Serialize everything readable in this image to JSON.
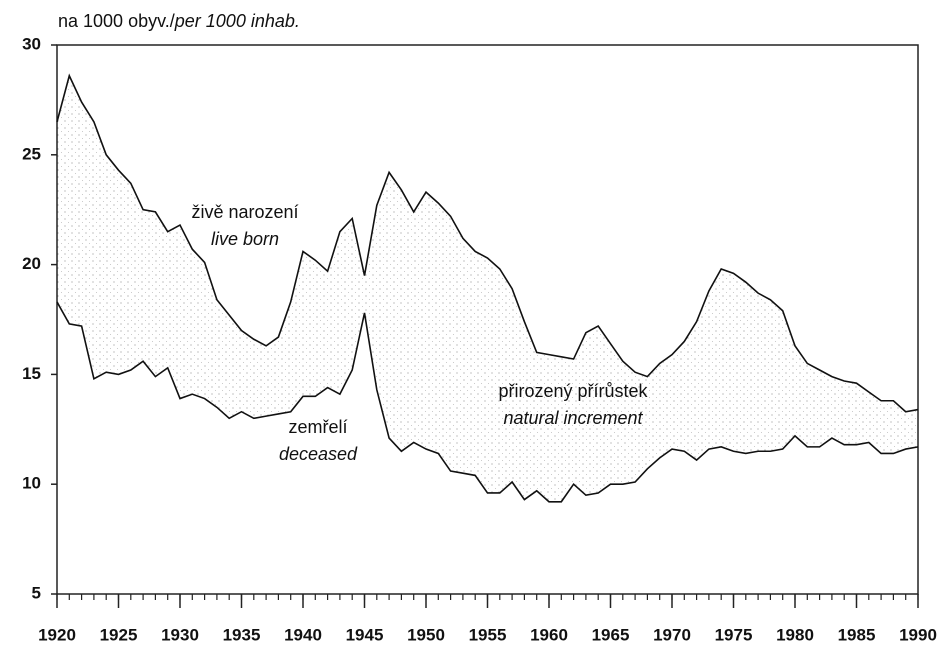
{
  "chart_data": {
    "type": "line",
    "y_label": [
      "na 1000 obyv./",
      "per 1000 inhab."
    ],
    "x": [
      1920,
      1921,
      1922,
      1923,
      1924,
      1925,
      1926,
      1927,
      1928,
      1929,
      1930,
      1931,
      1932,
      1933,
      1934,
      1935,
      1936,
      1937,
      1938,
      1939,
      1940,
      1941,
      1942,
      1943,
      1944,
      1945,
      1946,
      1947,
      1948,
      1949,
      1950,
      1951,
      1952,
      1953,
      1954,
      1955,
      1956,
      1957,
      1958,
      1959,
      1960,
      1961,
      1962,
      1963,
      1964,
      1965,
      1966,
      1967,
      1968,
      1969,
      1970,
      1971,
      1972,
      1973,
      1974,
      1975,
      1976,
      1977,
      1978,
      1979,
      1980,
      1981,
      1982,
      1983,
      1984,
      1985,
      1986,
      1987,
      1988,
      1989,
      1990
    ],
    "series": [
      {
        "name": [
          "živě narození",
          "live born"
        ],
        "color": "#111111",
        "values": [
          26.5,
          28.6,
          27.4,
          26.5,
          25.0,
          24.3,
          23.7,
          22.5,
          22.4,
          21.5,
          21.8,
          20.7,
          20.1,
          18.4,
          17.7,
          17.0,
          16.6,
          16.3,
          16.7,
          18.3,
          20.6,
          20.2,
          19.7,
          21.5,
          22.1,
          19.5,
          22.7,
          24.2,
          23.4,
          22.4,
          23.3,
          22.8,
          22.2,
          21.2,
          20.6,
          20.3,
          19.8,
          18.9,
          17.4,
          16.0,
          15.9,
          15.8,
          15.7,
          16.9,
          17.2,
          16.4,
          15.6,
          15.1,
          14.9,
          15.5,
          15.9,
          16.5,
          17.4,
          18.8,
          19.8,
          19.6,
          19.2,
          18.7,
          18.4,
          17.9,
          16.3,
          15.5,
          15.2,
          14.9,
          14.7,
          14.6,
          14.2,
          13.8,
          13.8,
          13.3,
          13.4
        ]
      },
      {
        "name": [
          "zemřelí",
          "deceased"
        ],
        "color": "#111111",
        "values": [
          18.3,
          17.3,
          17.2,
          14.8,
          15.1,
          15.0,
          15.2,
          15.6,
          14.9,
          15.3,
          13.9,
          14.1,
          13.9,
          13.5,
          13.0,
          13.3,
          13.0,
          13.1,
          13.2,
          13.3,
          14.0,
          14.0,
          14.4,
          14.1,
          15.2,
          17.8,
          14.3,
          12.1,
          11.5,
          11.9,
          11.6,
          11.4,
          10.6,
          10.5,
          10.4,
          9.6,
          9.6,
          10.1,
          9.3,
          9.7,
          9.2,
          9.2,
          10.0,
          9.5,
          9.6,
          10.0,
          10.0,
          10.1,
          10.7,
          11.2,
          11.6,
          11.5,
          11.1,
          11.6,
          11.7,
          11.5,
          11.4,
          11.5,
          11.5,
          11.6,
          12.2,
          11.7,
          11.7,
          12.1,
          11.8,
          11.8,
          11.9,
          11.4,
          11.4,
          11.6,
          11.7
        ]
      }
    ],
    "annotations": [
      [
        "přirozený přírůstek",
        "natural increment"
      ]
    ],
    "xlim": [
      1920,
      1990
    ],
    "xticks": [
      1920,
      1925,
      1930,
      1935,
      1940,
      1945,
      1950,
      1955,
      1960,
      1965,
      1970,
      1975,
      1980,
      1985,
      1990
    ],
    "ylim": [
      5,
      30
    ],
    "yticks": [
      5,
      10,
      15,
      20,
      25,
      30
    ]
  }
}
